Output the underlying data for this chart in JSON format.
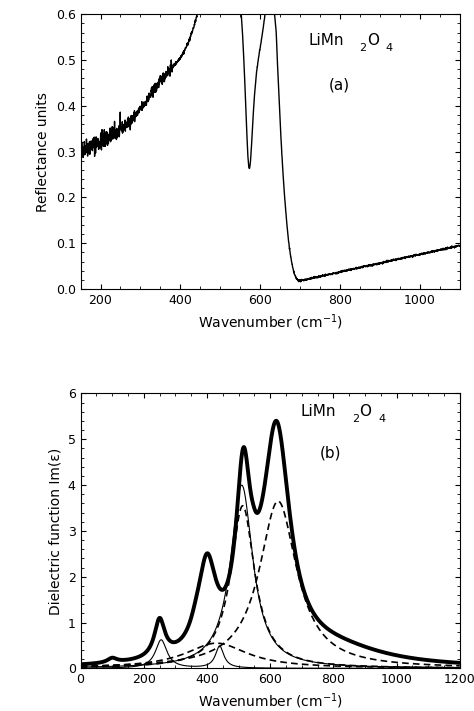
{
  "panel_a": {
    "xlabel": "Wavenumber (cm$^{-1}$)",
    "ylabel": "Reflectance units",
    "label_title": "LiMn",
    "label_sub": "2",
    "label_elem": "O",
    "label_sub2": "4",
    "label_panel": "(a)",
    "xlim": [
      150,
      1100
    ],
    "ylim": [
      0.0,
      0.6
    ],
    "yticks": [
      0.0,
      0.1,
      0.2,
      0.3,
      0.4,
      0.5,
      0.6
    ],
    "xticks": [
      200,
      400,
      600,
      800,
      1000
    ]
  },
  "panel_b": {
    "xlabel": "Wavenumber (cm$^{-1}$)",
    "ylabel": "Dielectric function Im(ε)",
    "label_title": "LiMn",
    "label_sub": "2",
    "label_elem": "O",
    "label_sub2": "4",
    "label_panel": "(b)",
    "xlim": [
      0,
      1200
    ],
    "ylim": [
      0.0,
      6.0
    ],
    "yticks": [
      0,
      1,
      2,
      3,
      4,
      5,
      6
    ],
    "xticks": [
      0,
      200,
      400,
      600,
      800,
      1000,
      1200
    ]
  },
  "line_color": "#000000",
  "bg_color": "#ffffff"
}
